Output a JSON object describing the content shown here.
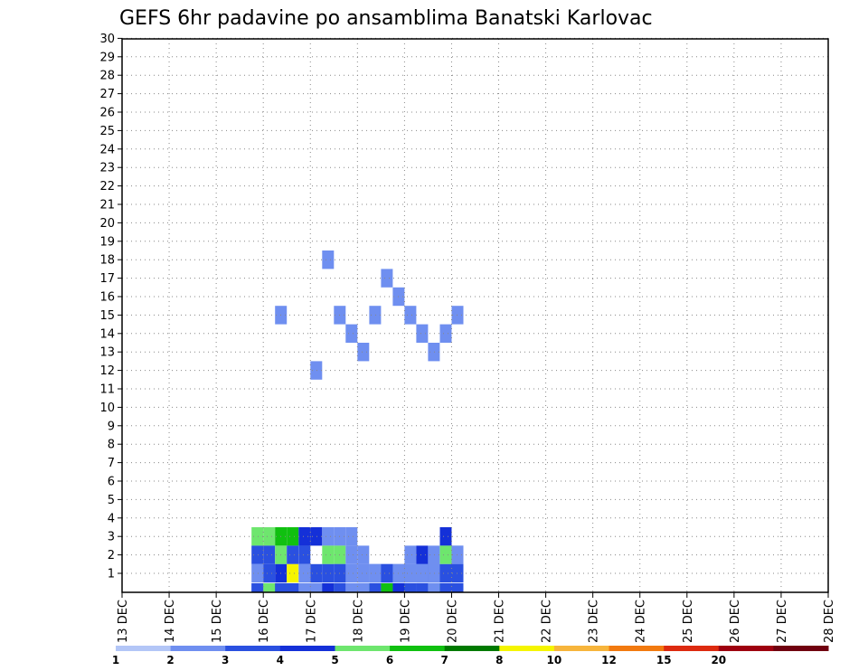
{
  "chart_data": {
    "type": "heatmap",
    "title": "GEFS 6hr padavine po ansamblima Banatski Karlovac",
    "x_tick_labels": [
      "13 DEC",
      "14 DEC",
      "15 DEC",
      "16 DEC",
      "17 DEC",
      "18 DEC",
      "19 DEC",
      "20 DEC",
      "21 DEC",
      "22 DEC",
      "23 DEC",
      "24 DEC",
      "25 DEC",
      "26 DEC",
      "27 DEC",
      "28 DEC"
    ],
    "y_tick_labels": [
      "1",
      "2",
      "3",
      "4",
      "5",
      "6",
      "7",
      "8",
      "9",
      "10",
      "11",
      "12",
      "13",
      "14",
      "15",
      "16",
      "17",
      "18",
      "19",
      "20",
      "21",
      "22",
      "23",
      "24",
      "25",
      "26",
      "27",
      "28",
      "29",
      "30"
    ],
    "x_range_days": [
      13,
      28
    ],
    "steps_per_day": 4,
    "grid": "dotted",
    "legend": {
      "labels": [
        "1",
        "2",
        "3",
        "4",
        "5",
        "6",
        "7",
        "8",
        "10",
        "12",
        "15",
        "20"
      ],
      "colors": [
        "#b3c6f7",
        "#6f8ff0",
        "#2a50e0",
        "#1430d8",
        "#6ee66e",
        "#10c010",
        "#007a00",
        "#f5f500",
        "#f7b53c",
        "#f27a10",
        "#dd2a10",
        "#9e0010",
        "#700010"
      ]
    },
    "cells": [
      [
        2,
        15,
        1
      ],
      [
        3,
        0,
        1
      ],
      [
        4,
        3,
        1
      ],
      [
        5,
        12,
        1
      ],
      [
        6,
        18,
        1
      ],
      [
        7,
        15,
        1
      ],
      [
        8,
        14,
        1
      ],
      [
        9,
        13,
        1
      ],
      [
        10,
        15,
        1
      ],
      [
        11,
        17,
        1
      ],
      [
        12,
        16,
        1
      ],
      [
        13,
        15,
        1
      ],
      [
        14,
        14,
        1
      ],
      [
        15,
        13,
        1
      ],
      [
        16,
        14,
        1
      ],
      [
        17,
        15,
        1
      ],
      [
        0,
        3,
        4
      ],
      [
        1,
        3,
        4
      ],
      [
        2,
        3,
        5
      ],
      [
        3,
        3,
        5
      ],
      [
        4,
        3,
        3
      ],
      [
        5,
        3,
        3
      ],
      [
        6,
        3,
        1
      ],
      [
        7,
        3,
        1
      ],
      [
        8,
        3,
        1
      ],
      [
        9,
        2,
        1
      ],
      [
        10,
        1,
        1
      ],
      [
        11,
        1,
        1
      ],
      [
        12,
        1,
        2
      ],
      [
        13,
        2,
        1
      ],
      [
        14,
        2,
        3
      ],
      [
        15,
        2,
        1
      ],
      [
        16,
        3,
        3
      ],
      [
        17,
        2,
        1
      ],
      [
        0,
        2,
        2
      ],
      [
        1,
        2,
        2
      ],
      [
        2,
        2,
        4
      ],
      [
        3,
        2,
        2
      ],
      [
        4,
        2,
        2
      ],
      [
        6,
        2,
        4
      ],
      [
        7,
        2,
        4
      ],
      [
        8,
        2,
        1
      ],
      [
        9,
        1,
        1
      ],
      [
        10,
        1,
        1
      ],
      [
        11,
        1,
        1
      ],
      [
        12,
        1,
        1
      ],
      [
        13,
        1,
        1
      ],
      [
        14,
        1,
        2
      ],
      [
        15,
        1,
        2
      ],
      [
        16,
        2,
        4
      ],
      [
        17,
        2,
        1
      ],
      [
        0,
        1,
        1
      ],
      [
        1,
        1,
        2
      ],
      [
        2,
        1,
        3
      ],
      [
        3,
        1,
        7
      ],
      [
        4,
        1,
        1
      ],
      [
        5,
        1,
        2
      ],
      [
        6,
        1,
        2
      ],
      [
        7,
        1,
        1
      ],
      [
        8,
        1,
        1
      ],
      [
        9,
        1,
        1
      ],
      [
        10,
        1,
        1
      ],
      [
        11,
        0,
        4
      ],
      [
        12,
        0,
        5
      ],
      [
        13,
        1,
        1
      ],
      [
        14,
        1,
        1
      ],
      [
        15,
        1,
        1
      ],
      [
        16,
        1,
        2
      ],
      [
        17,
        1,
        2
      ],
      [
        0,
        0,
        1
      ],
      [
        1,
        0,
        2
      ],
      [
        2,
        0,
        5
      ],
      [
        3,
        0,
        3
      ],
      [
        4,
        0,
        2
      ],
      [
        5,
        0,
        2
      ],
      [
        6,
        0,
        4
      ],
      [
        7,
        1,
        2
      ],
      [
        8,
        0,
        3
      ],
      [
        9,
        0,
        4
      ],
      [
        10,
        0,
        4
      ],
      [
        11,
        0,
        5
      ],
      [
        12,
        0,
        5
      ],
      [
        13,
        0,
        1
      ],
      [
        14,
        0,
        1
      ],
      [
        15,
        0,
        5
      ],
      [
        16,
        0,
        5
      ],
      [
        17,
        0,
        2
      ],
      [
        0,
        0,
        2
      ],
      [
        1,
        0,
        4
      ],
      [
        2,
        0,
        2
      ],
      [
        3,
        0,
        2
      ],
      [
        4,
        0,
        1
      ],
      [
        5,
        0,
        1
      ],
      [
        6,
        0,
        3
      ],
      [
        7,
        0,
        2
      ],
      [
        8,
        0,
        1
      ],
      [
        9,
        0,
        1
      ],
      [
        10,
        0,
        2
      ],
      [
        11,
        1,
        2
      ],
      [
        12,
        0,
        3
      ],
      [
        13,
        0,
        2
      ],
      [
        14,
        0,
        2
      ],
      [
        15,
        0,
        1
      ],
      [
        16,
        0,
        2
      ],
      [
        17,
        0,
        2
      ]
    ]
  }
}
